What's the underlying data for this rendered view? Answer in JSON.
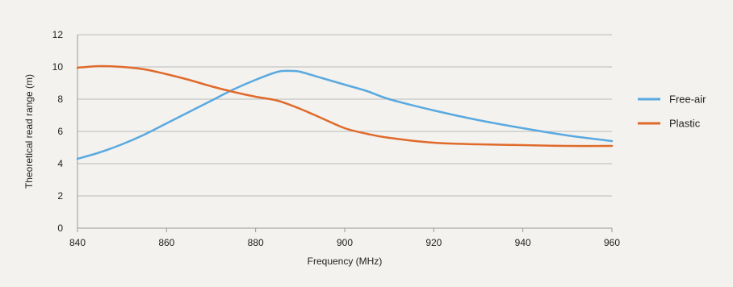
{
  "chart_data": {
    "type": "line",
    "title": "",
    "xlabel": "Frequency (MHz)",
    "ylabel": "Theoretical read range (m)",
    "xlim": [
      840,
      960
    ],
    "ylim": [
      0,
      12
    ],
    "x_ticks": [
      840,
      860,
      880,
      900,
      920,
      940,
      960
    ],
    "y_ticks": [
      0,
      2,
      4,
      6,
      8,
      10,
      12
    ],
    "grid": "horizontal",
    "legend_position": "right",
    "series": [
      {
        "name": "Free-air",
        "color": "#5aa9e0",
        "x": [
          840,
          845,
          850,
          855,
          860,
          865,
          870,
          875,
          880,
          885,
          888,
          890,
          895,
          900,
          905,
          910,
          920,
          930,
          940,
          950,
          960
        ],
        "y": [
          4.3,
          4.7,
          5.2,
          5.8,
          6.5,
          7.2,
          7.9,
          8.6,
          9.2,
          9.7,
          9.75,
          9.7,
          9.3,
          8.9,
          8.5,
          8.0,
          7.3,
          6.7,
          6.2,
          5.75,
          5.4
        ]
      },
      {
        "name": "Plastic",
        "color": "#e06a2b",
        "x": [
          840,
          845,
          850,
          855,
          860,
          865,
          870,
          875,
          880,
          885,
          890,
          895,
          900,
          905,
          910,
          920,
          930,
          940,
          950,
          960
        ],
        "y": [
          9.95,
          10.05,
          10.0,
          9.85,
          9.55,
          9.2,
          8.8,
          8.45,
          8.15,
          7.9,
          7.4,
          6.8,
          6.2,
          5.85,
          5.6,
          5.3,
          5.2,
          5.15,
          5.1,
          5.1
        ]
      }
    ]
  }
}
